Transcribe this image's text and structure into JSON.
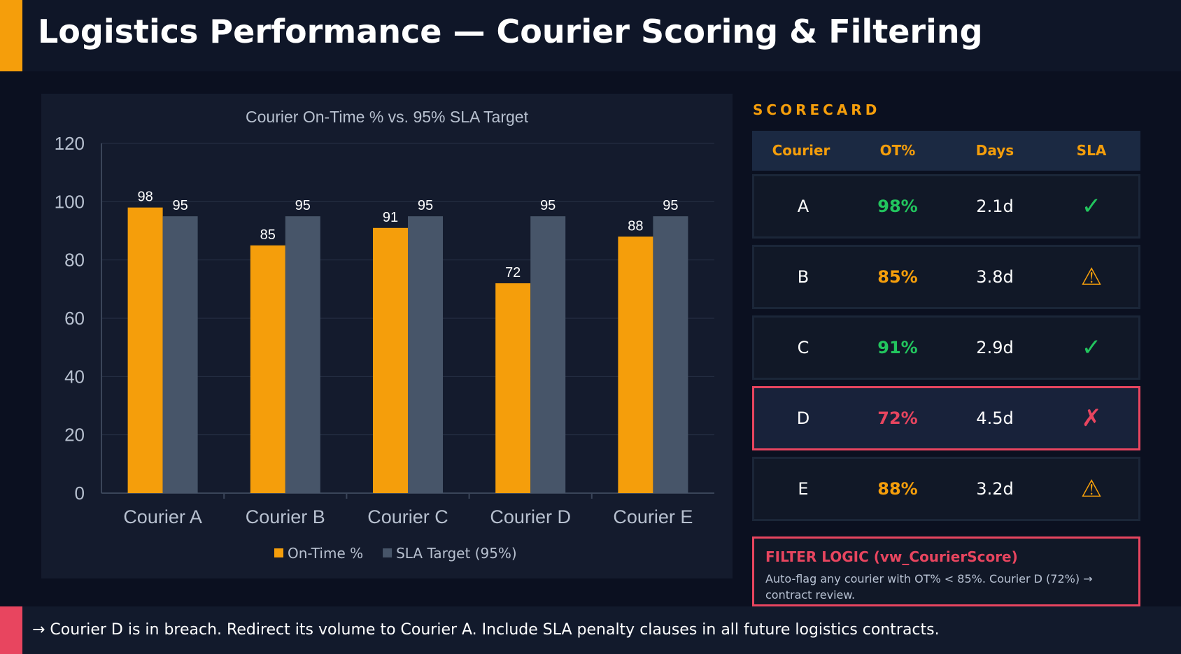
{
  "header": {
    "title": "Logistics Performance — Courier Scoring & Filtering"
  },
  "chart_data": {
    "type": "bar",
    "title": "Courier On-Time % vs. 95% SLA Target",
    "categories": [
      "Courier A",
      "Courier B",
      "Courier C",
      "Courier D",
      "Courier E"
    ],
    "series": [
      {
        "name": "On-Time %",
        "values": [
          98,
          85,
          91,
          72,
          88
        ],
        "color": "#f59e0b"
      },
      {
        "name": "SLA Target (95%)",
        "values": [
          95,
          95,
          95,
          95,
          95
        ],
        "color": "#475569"
      }
    ],
    "ylim": [
      0,
      120
    ],
    "yticks": [
      0,
      20,
      40,
      60,
      80,
      100,
      120
    ],
    "grid": true,
    "legend": "bottom",
    "data_labels": true
  },
  "scorecard": {
    "title": "SCORECARD",
    "headers": [
      "Courier",
      "OT%",
      "Days",
      "SLA"
    ],
    "rows": [
      {
        "courier": "A",
        "ot": "98%",
        "days": "2.1d",
        "sla": "✓",
        "status": "pass"
      },
      {
        "courier": "B",
        "ot": "85%",
        "days": "3.8d",
        "sla": "⚠",
        "status": "warn"
      },
      {
        "courier": "C",
        "ot": "91%",
        "days": "2.9d",
        "sla": "✓",
        "status": "pass"
      },
      {
        "courier": "D",
        "ot": "72%",
        "days": "4.5d",
        "sla": "✗",
        "status": "fail"
      },
      {
        "courier": "E",
        "ot": "88%",
        "days": "3.2d",
        "sla": "⚠",
        "status": "warn"
      }
    ],
    "status_colors": {
      "pass": "#22c55e",
      "warn": "#f59e0b",
      "fail": "#e8455f"
    }
  },
  "filter": {
    "title": "FILTER LOGIC (vw_CourierScore)",
    "text": "Auto-flag any courier with OT% < 85%. Courier D (72%) → contract review."
  },
  "footer": {
    "text": "→ Courier D is in breach. Redirect its volume to Courier A. Include SLA penalty clauses in all future logistics contracts."
  }
}
